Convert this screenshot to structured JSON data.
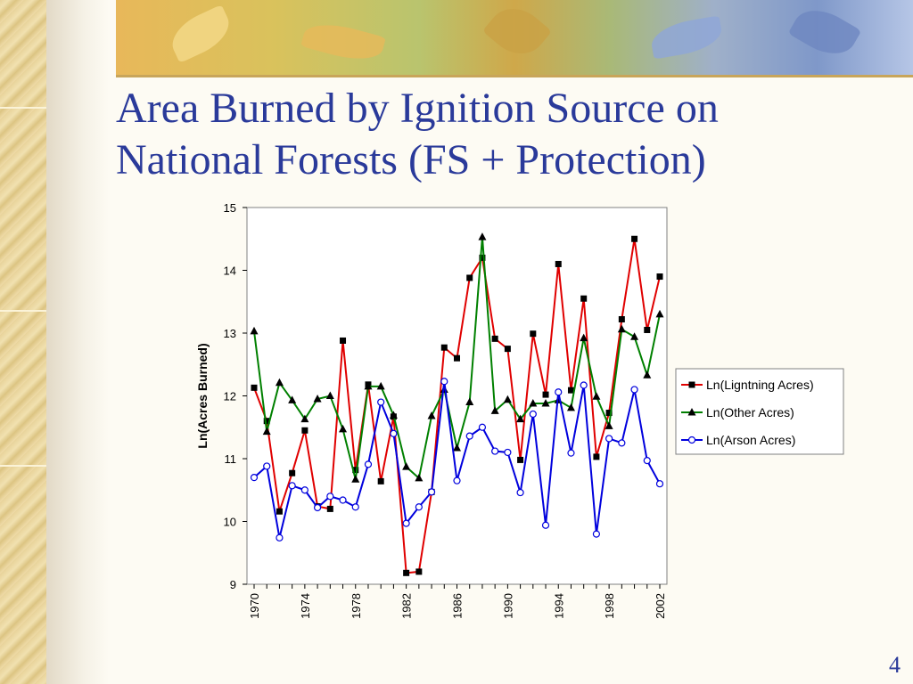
{
  "slide": {
    "title_line1": "Area Burned by Ignition Source on",
    "title_line2": "National Forests (FS + Protection)",
    "page_number": "4"
  },
  "colors": {
    "title": "#2a3a9a",
    "lightning": "#e00000",
    "other": "#008000",
    "arson": "#0000dd"
  },
  "chart_data": {
    "type": "line",
    "title": "",
    "xlabel": "",
    "ylabel": "Ln(Acres Burned)",
    "ylim": [
      9,
      15
    ],
    "yticks": [
      9,
      10,
      11,
      12,
      13,
      14,
      15
    ],
    "xticks": [
      1970,
      1974,
      1978,
      1982,
      1986,
      1990,
      1994,
      1998,
      2002
    ],
    "xlim": [
      1970,
      2002
    ],
    "grid": false,
    "legend_position": "right",
    "x": [
      1970,
      1971,
      1972,
      1973,
      1974,
      1975,
      1976,
      1977,
      1978,
      1979,
      1980,
      1981,
      1982,
      1983,
      1984,
      1985,
      1986,
      1987,
      1988,
      1989,
      1990,
      1991,
      1992,
      1993,
      1994,
      1995,
      1996,
      1997,
      1998,
      1999,
      2000,
      2001,
      2002
    ],
    "series": [
      {
        "name": "Ln(Ligntning Acres)",
        "marker": "square",
        "values": [
          12.13,
          11.6,
          10.16,
          10.77,
          11.45,
          10.24,
          10.2,
          12.88,
          10.82,
          12.18,
          10.64,
          11.67,
          9.18,
          9.2,
          10.47,
          12.77,
          12.6,
          13.88,
          14.2,
          12.91,
          12.75,
          10.98,
          12.99,
          12.02,
          14.1,
          12.09,
          13.55,
          11.03,
          11.73,
          13.22,
          14.5,
          13.05,
          13.9
        ]
      },
      {
        "name": "Ln(Other Acres)",
        "marker": "triangle",
        "values": [
          13.03,
          11.43,
          12.21,
          11.93,
          11.63,
          11.95,
          12.0,
          11.47,
          10.67,
          12.15,
          12.15,
          11.69,
          10.87,
          10.69,
          11.68,
          12.1,
          11.17,
          11.9,
          14.53,
          11.76,
          11.94,
          11.63,
          11.88,
          11.88,
          11.93,
          11.81,
          12.92,
          11.99,
          11.52,
          13.06,
          12.94,
          12.33,
          13.3
        ]
      },
      {
        "name": "Ln(Arson Acres)",
        "marker": "circle-open",
        "values": [
          10.7,
          10.88,
          9.74,
          10.57,
          10.5,
          10.22,
          10.4,
          10.34,
          10.23,
          10.91,
          11.9,
          11.4,
          9.97,
          10.23,
          10.47,
          12.23,
          10.65,
          11.36,
          11.5,
          11.12,
          11.1,
          10.46,
          11.71,
          9.94,
          12.06,
          11.09,
          12.17,
          9.8,
          11.32,
          11.25,
          12.1,
          10.97,
          10.6
        ]
      }
    ]
  }
}
